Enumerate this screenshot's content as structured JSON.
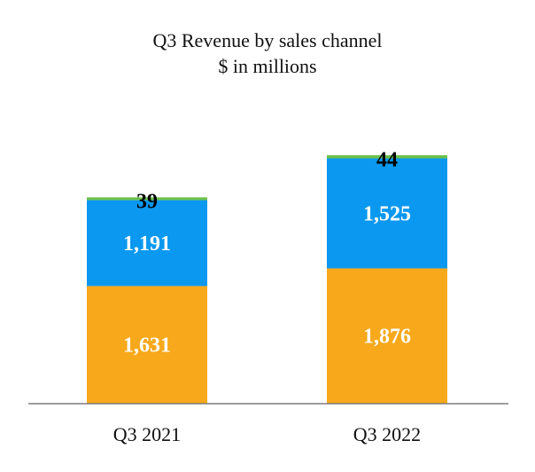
{
  "chart_data": {
    "type": "bar",
    "stacked": true,
    "title": "Q3 Revenue by sales channel",
    "subtitle": "$ in millions",
    "categories": [
      "Q3 2021",
      "Q3 2022"
    ],
    "series": [
      {
        "values": [
          1631,
          1876
        ],
        "labels": [
          "1,631",
          "1,876"
        ],
        "color": "#F7A81B",
        "label_color": "#ffffff"
      },
      {
        "values": [
          1191,
          1525
        ],
        "labels": [
          "1,191",
          "1,525"
        ],
        "color": "#0A98F0",
        "label_color": "#ffffff"
      },
      {
        "values": [
          39,
          44
        ],
        "labels": [
          "39",
          "44"
        ],
        "color": "#6DC04B",
        "label_color": "#000000"
      }
    ],
    "ylim": [
      0,
      3500
    ],
    "grid": false,
    "legend": "none"
  }
}
